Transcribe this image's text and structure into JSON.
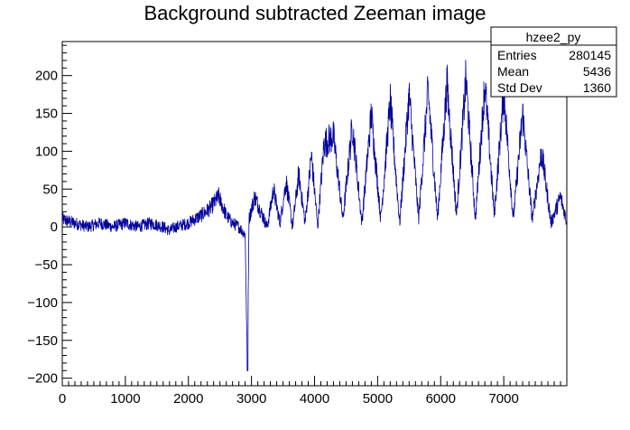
{
  "chart_data": {
    "type": "line",
    "title": "Background subtracted Zeeman image",
    "xlabel": "",
    "ylabel": "",
    "xlim": [
      0,
      8000
    ],
    "ylim": [
      -210,
      245
    ],
    "x_ticks": [
      0,
      1000,
      2000,
      3000,
      4000,
      5000,
      6000,
      7000
    ],
    "y_ticks": [
      -200,
      -150,
      -100,
      -50,
      0,
      50,
      100,
      150,
      200
    ],
    "grid": false,
    "line_color": "#00009c",
    "series": [
      {
        "values_description": "approximate envelope of the noisy histogram",
        "x": [
          0,
          200,
          400,
          600,
          800,
          1000,
          1200,
          1400,
          1600,
          1700,
          1800,
          2000,
          2200,
          2350,
          2480,
          2600,
          2700,
          2800,
          2900,
          2935,
          2960,
          3050,
          3150,
          3250,
          3350,
          3450,
          3550,
          3650,
          3750,
          3850,
          3950,
          4050,
          4150,
          4300,
          4450,
          4600,
          4750,
          4900,
          5050,
          5200,
          5350,
          5500,
          5650,
          5800,
          5950,
          6100,
          6250,
          6400,
          6550,
          6700,
          6850,
          7000,
          7150,
          7300,
          7450,
          7600,
          7750,
          7900,
          7990
        ],
        "y": [
          10,
          5,
          0,
          5,
          0,
          5,
          0,
          5,
          0,
          -5,
          0,
          5,
          15,
          25,
          40,
          15,
          5,
          0,
          -10,
          -190,
          10,
          40,
          20,
          0,
          50,
          5,
          60,
          0,
          70,
          5,
          95,
          0,
          110,
          120,
          10,
          135,
          5,
          150,
          10,
          165,
          5,
          175,
          10,
          180,
          10,
          190,
          15,
          195,
          10,
          190,
          15,
          180,
          10,
          150,
          10,
          100,
          5,
          40,
          10
        ]
      }
    ],
    "stats_box": {
      "name": "hzee2_py",
      "rows": [
        {
          "label": "Entries",
          "value": "280145"
        },
        {
          "label": "Mean",
          "value": "5436"
        },
        {
          "label": "Std Dev",
          "value": "1360"
        }
      ]
    }
  }
}
